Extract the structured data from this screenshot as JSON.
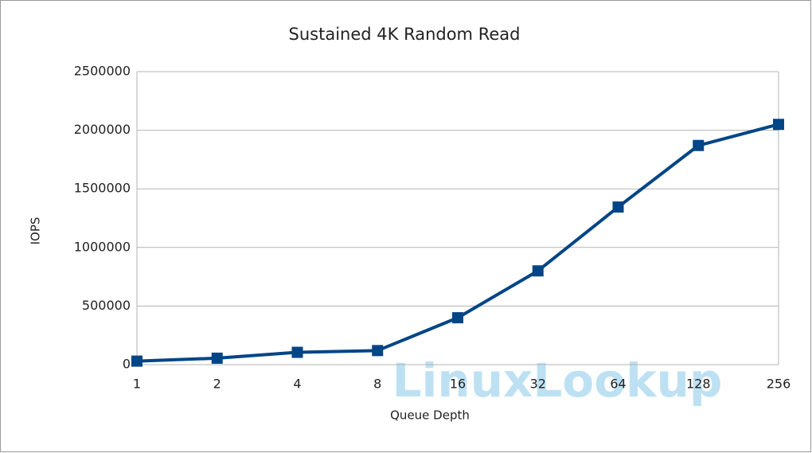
{
  "chart_data": {
    "type": "line",
    "title": "Sustained 4K Random Read",
    "x_label": "Queue Depth",
    "y_label": "IOPS",
    "categories": [
      "1",
      "2",
      "4",
      "8",
      "16",
      "32",
      "64",
      "128",
      "256"
    ],
    "series": [
      {
        "name": "IOPS",
        "color": "#004586",
        "values": [
          30000,
          55000,
          105000,
          120000,
          400000,
          800000,
          1345000,
          1870000,
          2050000
        ]
      }
    ],
    "ylim": [
      0,
      2500000
    ],
    "yticks": [
      0,
      500000,
      1000000,
      1500000,
      2000000,
      2500000
    ],
    "grid": true,
    "watermark": "LinuxLookup"
  }
}
